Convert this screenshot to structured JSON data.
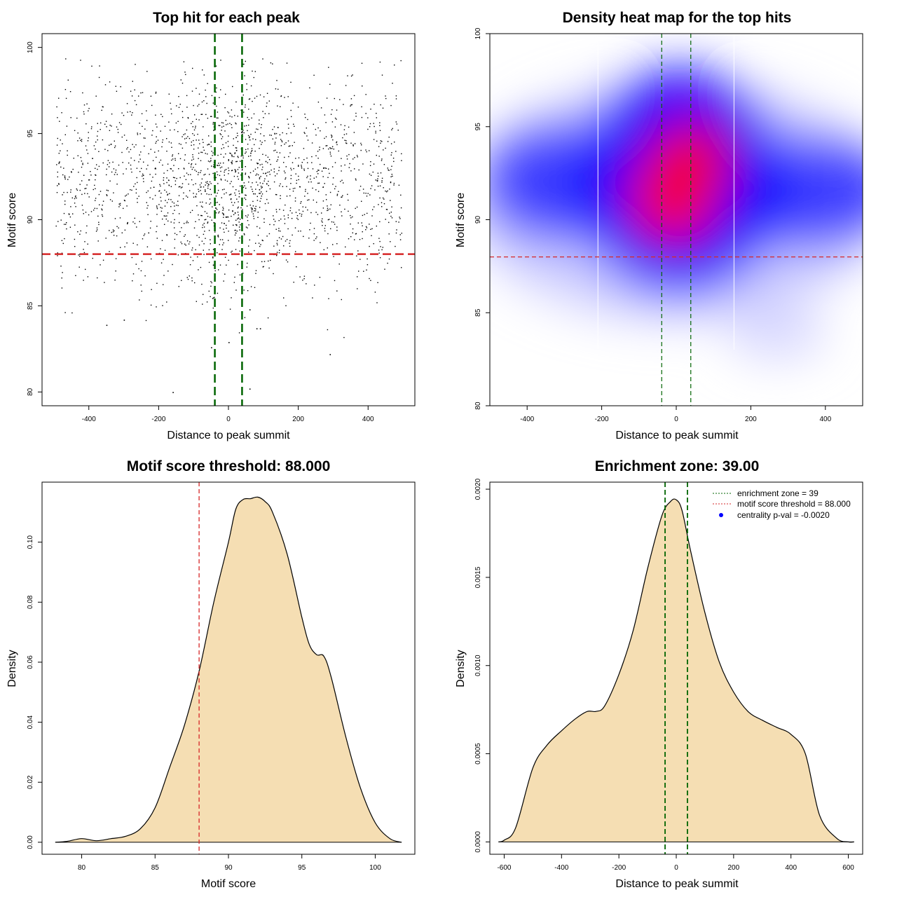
{
  "chart_data": [
    {
      "type": "scatter",
      "title": "Top hit for each peak",
      "xlabel": "Distance to peak summit",
      "ylabel": "Motif score",
      "xlim": [
        -534,
        534
      ],
      "ylim": [
        79.2,
        100.8
      ],
      "xticks": [
        "-400",
        "-200",
        "0",
        "200",
        "400"
      ],
      "xtick_values": [
        -400,
        -200,
        0,
        200,
        400
      ],
      "yticks": [
        "80",
        "85",
        "90",
        "95",
        "100"
      ],
      "ytick_values": [
        80,
        85,
        90,
        95,
        100
      ],
      "points_note": "approx. 2000 points, distance uniform in [-500,500], score concentrated around 91-93 with spread 82-99.5",
      "sample_points": {
        "x": [
          -160,
          60,
          -50,
          0,
          290,
          -350,
          -300,
          60,
          80,
          90
        ],
        "y": [
          80.0,
          80.2,
          82.6,
          82.9,
          82.2,
          83.9,
          84.2,
          84.8,
          83.7,
          83.7
        ]
      },
      "hlines": [
        {
          "y": 88.0,
          "color": "#d62728",
          "style": "dashed"
        }
      ],
      "vlines": [
        {
          "x": -39,
          "color": "#006400",
          "style": "dashed"
        },
        {
          "x": 39,
          "color": "#006400",
          "style": "dashed"
        }
      ]
    },
    {
      "type": "heatmap",
      "title": "Density heat map for the top hits",
      "xlabel": "Distance to peak summit",
      "ylabel": "Motif score",
      "xlim": [
        -500,
        500
      ],
      "ylim": [
        80,
        100
      ],
      "xticks": [
        "-400",
        "-200",
        "0",
        "200",
        "400"
      ],
      "xtick_values": [
        -400,
        -200,
        0,
        200,
        400
      ],
      "yticks": [
        "80",
        "85",
        "90",
        "95",
        "100"
      ],
      "ytick_values": [
        80,
        85,
        90,
        95,
        100
      ],
      "color_scale": [
        "#ffffff",
        "#0000ff",
        "#ff0000"
      ],
      "density_peaks": [
        {
          "x": -10,
          "y": 91.0,
          "level": 1.0
        },
        {
          "x": 40,
          "y": 93.3,
          "level": 0.95
        },
        {
          "x": -300,
          "y": 92.0,
          "level": 0.55
        },
        {
          "x": 350,
          "y": 91.5,
          "level": 0.55
        }
      ],
      "white_vlines": [
        -210,
        155
      ],
      "hlines": [
        {
          "y": 88.0,
          "color": "#d62728",
          "style": "dashed"
        }
      ],
      "vlines": [
        {
          "x": -39,
          "color": "#006400",
          "style": "dashed"
        },
        {
          "x": 39,
          "color": "#006400",
          "style": "dashed"
        }
      ]
    },
    {
      "type": "area",
      "title": "Motif score threshold: 88.000",
      "xlabel": "Motif score",
      "ylabel": "Density",
      "xlim": [
        77.3,
        102.7
      ],
      "ylim": [
        -0.004,
        0.12
      ],
      "xticks": [
        "80",
        "85",
        "90",
        "95",
        "100"
      ],
      "xtick_values": [
        80,
        85,
        90,
        95,
        100
      ],
      "yticks": [
        "0.00",
        "0.02",
        "0.04",
        "0.06",
        "0.08",
        "0.10"
      ],
      "ytick_values": [
        0,
        0.02,
        0.04,
        0.06,
        0.08,
        0.1
      ],
      "fill": "#f5deb3",
      "x": [
        78.2,
        79,
        80,
        81,
        82,
        83,
        84,
        85,
        86,
        87,
        88,
        89,
        90,
        90.5,
        91,
        91.5,
        92,
        92.5,
        93,
        94,
        95,
        95.5,
        96,
        96.5,
        97,
        98,
        99,
        100,
        101,
        101.8
      ],
      "y": [
        0.0,
        0.0003,
        0.0012,
        0.0005,
        0.0012,
        0.002,
        0.0045,
        0.0115,
        0.025,
        0.039,
        0.057,
        0.08,
        0.1,
        0.111,
        0.1142,
        0.1145,
        0.115,
        0.1135,
        0.11,
        0.096,
        0.075,
        0.066,
        0.0625,
        0.062,
        0.055,
        0.035,
        0.018,
        0.0065,
        0.0012,
        0.0
      ],
      "vlines": [
        {
          "x": 88.0,
          "color": "#d62728",
          "style": "dashed"
        }
      ]
    },
    {
      "type": "area",
      "title": "Enrichment zone: 39.00",
      "xlabel": "Distance to peak summit",
      "ylabel": "Density",
      "xlim": [
        -650,
        650
      ],
      "ylim": [
        -7e-05,
        0.00204
      ],
      "xticks": [
        "-600",
        "-400",
        "-200",
        "0",
        "200",
        "400",
        "600"
      ],
      "xtick_values": [
        -600,
        -400,
        -200,
        0,
        200,
        400,
        600
      ],
      "yticks": [
        "0.0000",
        "0.0005",
        "0.0010",
        "0.0015",
        "0.0020"
      ],
      "ytick_values": [
        0,
        0.0005,
        0.001,
        0.0015,
        0.002
      ],
      "fill": "#f5deb3",
      "x": [
        -620,
        -600,
        -560,
        -500,
        -450,
        -400,
        -350,
        -310,
        -280,
        -250,
        -200,
        -150,
        -100,
        -50,
        -20,
        0,
        20,
        50,
        100,
        150,
        200,
        250,
        300,
        350,
        400,
        450,
        500,
        560,
        600,
        620
      ],
      "y": [
        0.0,
        1e-05,
        8e-05,
        0.00042,
        0.00055,
        0.00063,
        0.0007,
        0.00074,
        0.00074,
        0.00077,
        0.00095,
        0.0012,
        0.00155,
        0.00185,
        0.00193,
        0.00194,
        0.00188,
        0.00165,
        0.0013,
        0.00102,
        0.00085,
        0.00074,
        0.00069,
        0.00065,
        0.00061,
        0.0005,
        0.00015,
        2e-05,
        0.0,
        0.0
      ],
      "vlines": [
        {
          "x": -39,
          "color": "#006400",
          "style": "dashed"
        },
        {
          "x": 39,
          "color": "#006400",
          "style": "dashed"
        }
      ],
      "legend": {
        "position": "top-right",
        "items": [
          {
            "label": "enrichment zone = 39",
            "color": "#006400",
            "style": "dotted"
          },
          {
            "label": "motif score threshold = 88.000",
            "color": "#d62728",
            "style": "dotted"
          },
          {
            "label": "centrality p-val = -0.0020",
            "color": "#0000ff",
            "style": "point"
          }
        ]
      }
    }
  ]
}
